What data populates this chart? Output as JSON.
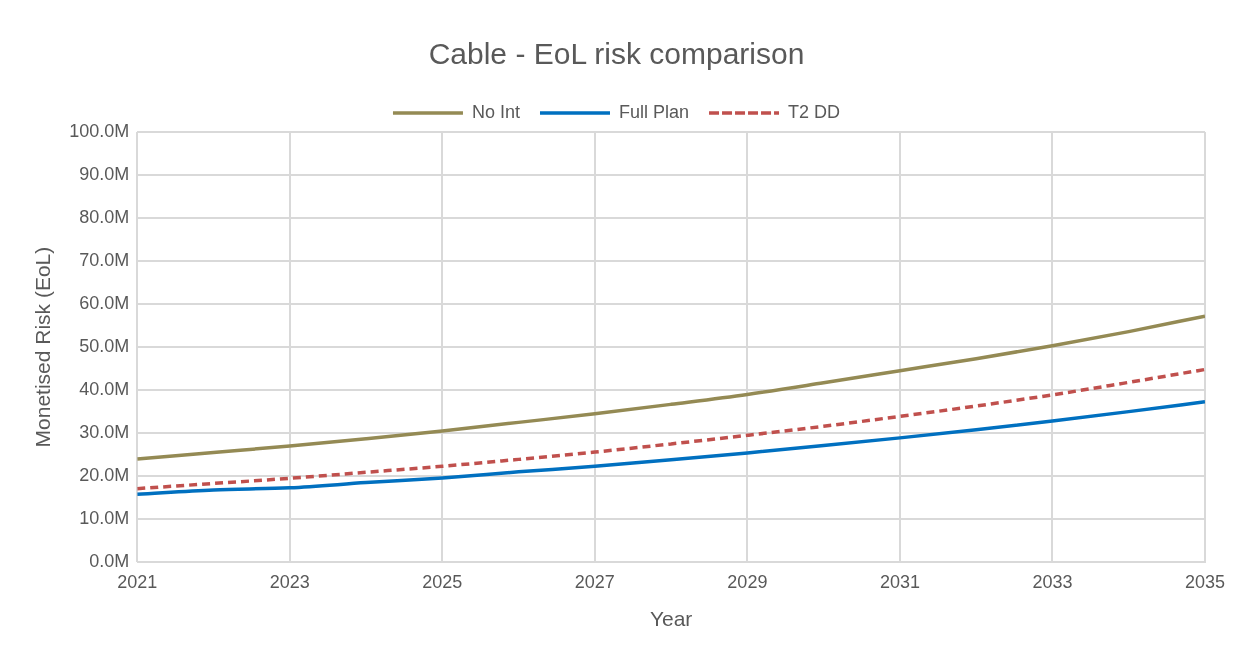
{
  "chart_data": {
    "type": "line",
    "title": "Cable - EoL risk comparison",
    "xlabel": "Year",
    "ylabel": "Monetised Risk (EoL)",
    "x": [
      2021,
      2022,
      2023,
      2024,
      2025,
      2026,
      2027,
      2028,
      2029,
      2030,
      2031,
      2032,
      2033,
      2034,
      2035
    ],
    "series": [
      {
        "name": "No Int",
        "color": "#948a54",
        "line_style": "solid",
        "values": [
          24,
          25.5,
          27,
          28.7,
          30.5,
          32.5,
          34.5,
          36.7,
          39,
          41.7,
          44.5,
          47.3,
          50.3,
          53.6,
          57.2
        ]
      },
      {
        "name": "Full Plan",
        "color": "#0070c0",
        "line_style": "solid",
        "values": [
          15.8,
          16.8,
          17.3,
          18.5,
          19.6,
          21,
          22.3,
          23.8,
          25.4,
          27.1,
          28.9,
          30.8,
          32.8,
          35,
          37.3
        ]
      },
      {
        "name": "T2 DD",
        "color": "#c0504d",
        "line_style": "dashed",
        "values": [
          17.1,
          18.3,
          19.5,
          20.9,
          22.3,
          23.9,
          25.6,
          27.5,
          29.5,
          31.6,
          33.9,
          36.3,
          38.9,
          41.8,
          44.8
        ]
      }
    ],
    "xlim": [
      2021,
      2035
    ],
    "xticks": [
      2021,
      2023,
      2025,
      2027,
      2029,
      2031,
      2033,
      2035
    ],
    "ylim": [
      0,
      100
    ],
    "yticks": [
      {
        "value": 0,
        "label": "0.0M"
      },
      {
        "value": 10,
        "label": "10.0M"
      },
      {
        "value": 20,
        "label": "20.0M"
      },
      {
        "value": 30,
        "label": "30.0M"
      },
      {
        "value": 40,
        "label": "40.0M"
      },
      {
        "value": 50,
        "label": "50.0M"
      },
      {
        "value": 60,
        "label": "60.0M"
      },
      {
        "value": 70,
        "label": "70.0M"
      },
      {
        "value": 80,
        "label": "80.0M"
      },
      {
        "value": 90,
        "label": "90.0M"
      },
      {
        "value": 100,
        "label": "100.0M"
      }
    ],
    "grid": true,
    "legend": "top",
    "marker": "none"
  }
}
